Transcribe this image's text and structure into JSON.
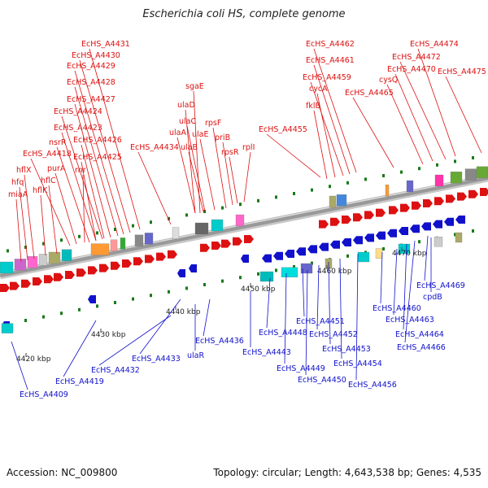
{
  "title": "Escherichia coli HS, complete genome",
  "footer": {
    "accession": "Accession: NC_009800",
    "topology": "Topology: circular; Length: 4,643,538 bp; Genes: 4,535"
  },
  "colors": {
    "forward": "#dd1111",
    "reverse": "#1111cc",
    "backbone": "#999999"
  },
  "ticks": [
    "4420 kbp",
    "4430 kbp",
    "4440 kbp",
    "4450 kbp",
    "4460 kbp",
    "4470 kbp"
  ],
  "forward_labels": [
    "EcHS_A4431",
    "EcHS_A4430",
    "EcHS_A4429",
    "EcHS_A4428",
    "EcHS_A4427",
    "EcHS_A4424",
    "EcHS_A4423",
    "nsrR",
    "EcHS_A4426",
    "EcHS_A4418",
    "EcHS_A4425",
    "purA",
    "rnr",
    "hflX",
    "hfq",
    "hflC",
    "hflK",
    "miaA",
    "sgaE",
    "ulaD",
    "ulaC",
    "ulaA",
    "ulaE",
    "ulaB",
    "rpsF",
    "priB",
    "rpsR",
    "rplI",
    "EcHS_A4434",
    "EcHS_A4455",
    "EcHS_A4462",
    "EcHS_A4461",
    "EcHS_A4459",
    "cycA",
    "fklB",
    "EcHS_A4465",
    "EcHS_A4474",
    "EcHS_A4472",
    "EcHS_A4470",
    "cysQ",
    "EcHS_A4475"
  ],
  "reverse_labels": [
    "EcHS_A4409",
    "EcHS_A4419",
    "EcHS_A4432",
    "EcHS_A4433",
    "ulaR",
    "EcHS_A4436",
    "EcHS_A4443",
    "EcHS_A4448",
    "EcHS_A4449",
    "EcHS_A4450",
    "EcHS_A4451",
    "EcHS_A4452",
    "EcHS_A4453",
    "EcHS_A4454",
    "EcHS_A4456",
    "EcHS_A4460",
    "EcHS_A4463",
    "EcHS_A4464",
    "EcHS_A4466",
    "EcHS_A4469",
    "cpdB"
  ]
}
